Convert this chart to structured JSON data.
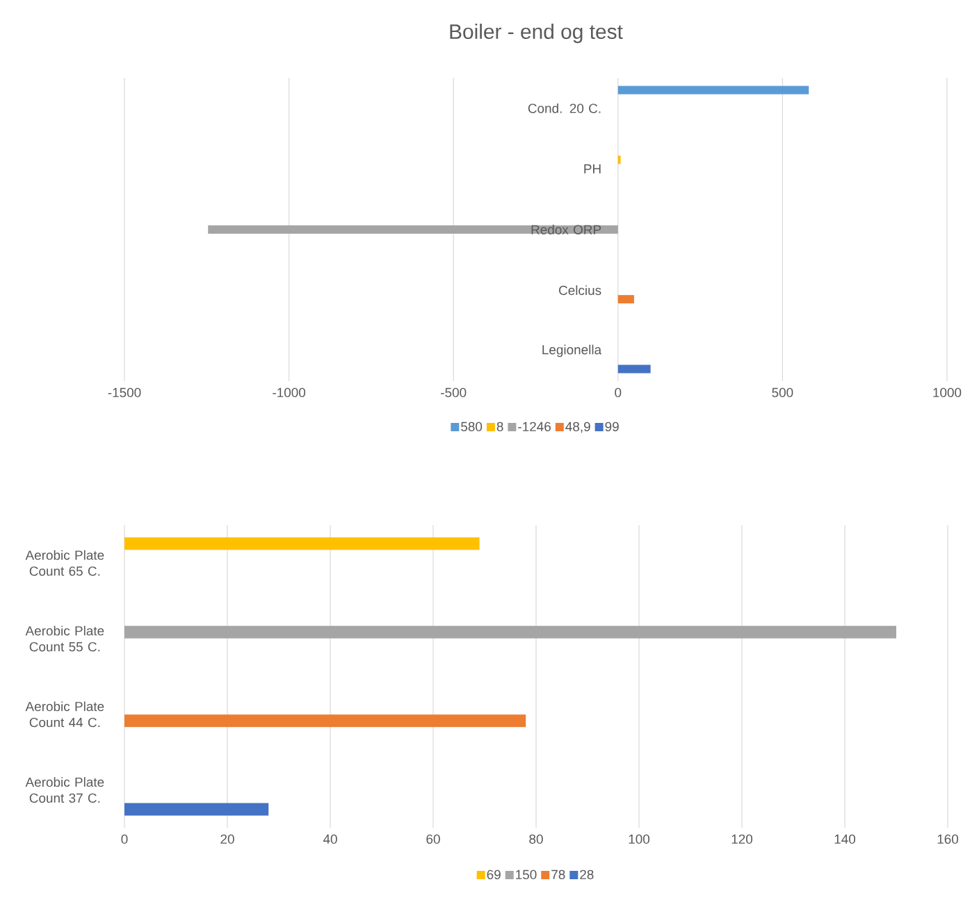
{
  "chart_data": [
    {
      "type": "bar",
      "orientation": "horizontal",
      "title": "Boiler - end og test",
      "categories": [
        "Cond. 20 C.",
        "PH",
        "Redox ORP",
        "Celcius",
        "Legionella"
      ],
      "series": [
        {
          "name": "580",
          "color": "#5b9bd5",
          "values": [
            580,
            null,
            null,
            null,
            null
          ]
        },
        {
          "name": "8",
          "color": "#ffc000",
          "values": [
            null,
            8,
            null,
            null,
            null
          ]
        },
        {
          "name": "-1246",
          "color": "#a5a5a5",
          "values": [
            null,
            null,
            -1246,
            null,
            null
          ]
        },
        {
          "name": "48,9",
          "color": "#ed7d31",
          "values": [
            null,
            null,
            null,
            48.9,
            null
          ]
        },
        {
          "name": "99",
          "color": "#4472c4",
          "values": [
            null,
            null,
            null,
            null,
            99
          ]
        }
      ],
      "xlim": [
        -1500,
        1000
      ],
      "xticks": [
        -1500,
        -1000,
        -500,
        0,
        500,
        1000
      ],
      "grid": "x",
      "legend": "bottom"
    },
    {
      "type": "bar",
      "orientation": "horizontal",
      "categories": [
        "Aerobic Plate Count 65 C.",
        "Aerobic Plate Count 55 C.",
        "Aerobic Plate Count 44 C.",
        "Aerobic Plate Count 37 C."
      ],
      "series": [
        {
          "name": "69",
          "color": "#ffc000",
          "values": [
            69,
            null,
            null,
            null
          ]
        },
        {
          "name": "150",
          "color": "#a5a5a5",
          "values": [
            null,
            150,
            null,
            null
          ]
        },
        {
          "name": "78",
          "color": "#ed7d31",
          "values": [
            null,
            null,
            78,
            null
          ]
        },
        {
          "name": "28",
          "color": "#4472c4",
          "values": [
            null,
            null,
            null,
            28
          ]
        }
      ],
      "xlim": [
        0,
        160
      ],
      "xticks": [
        0,
        20,
        40,
        60,
        80,
        100,
        120,
        140,
        160
      ],
      "grid": "x",
      "legend": "bottom"
    }
  ]
}
